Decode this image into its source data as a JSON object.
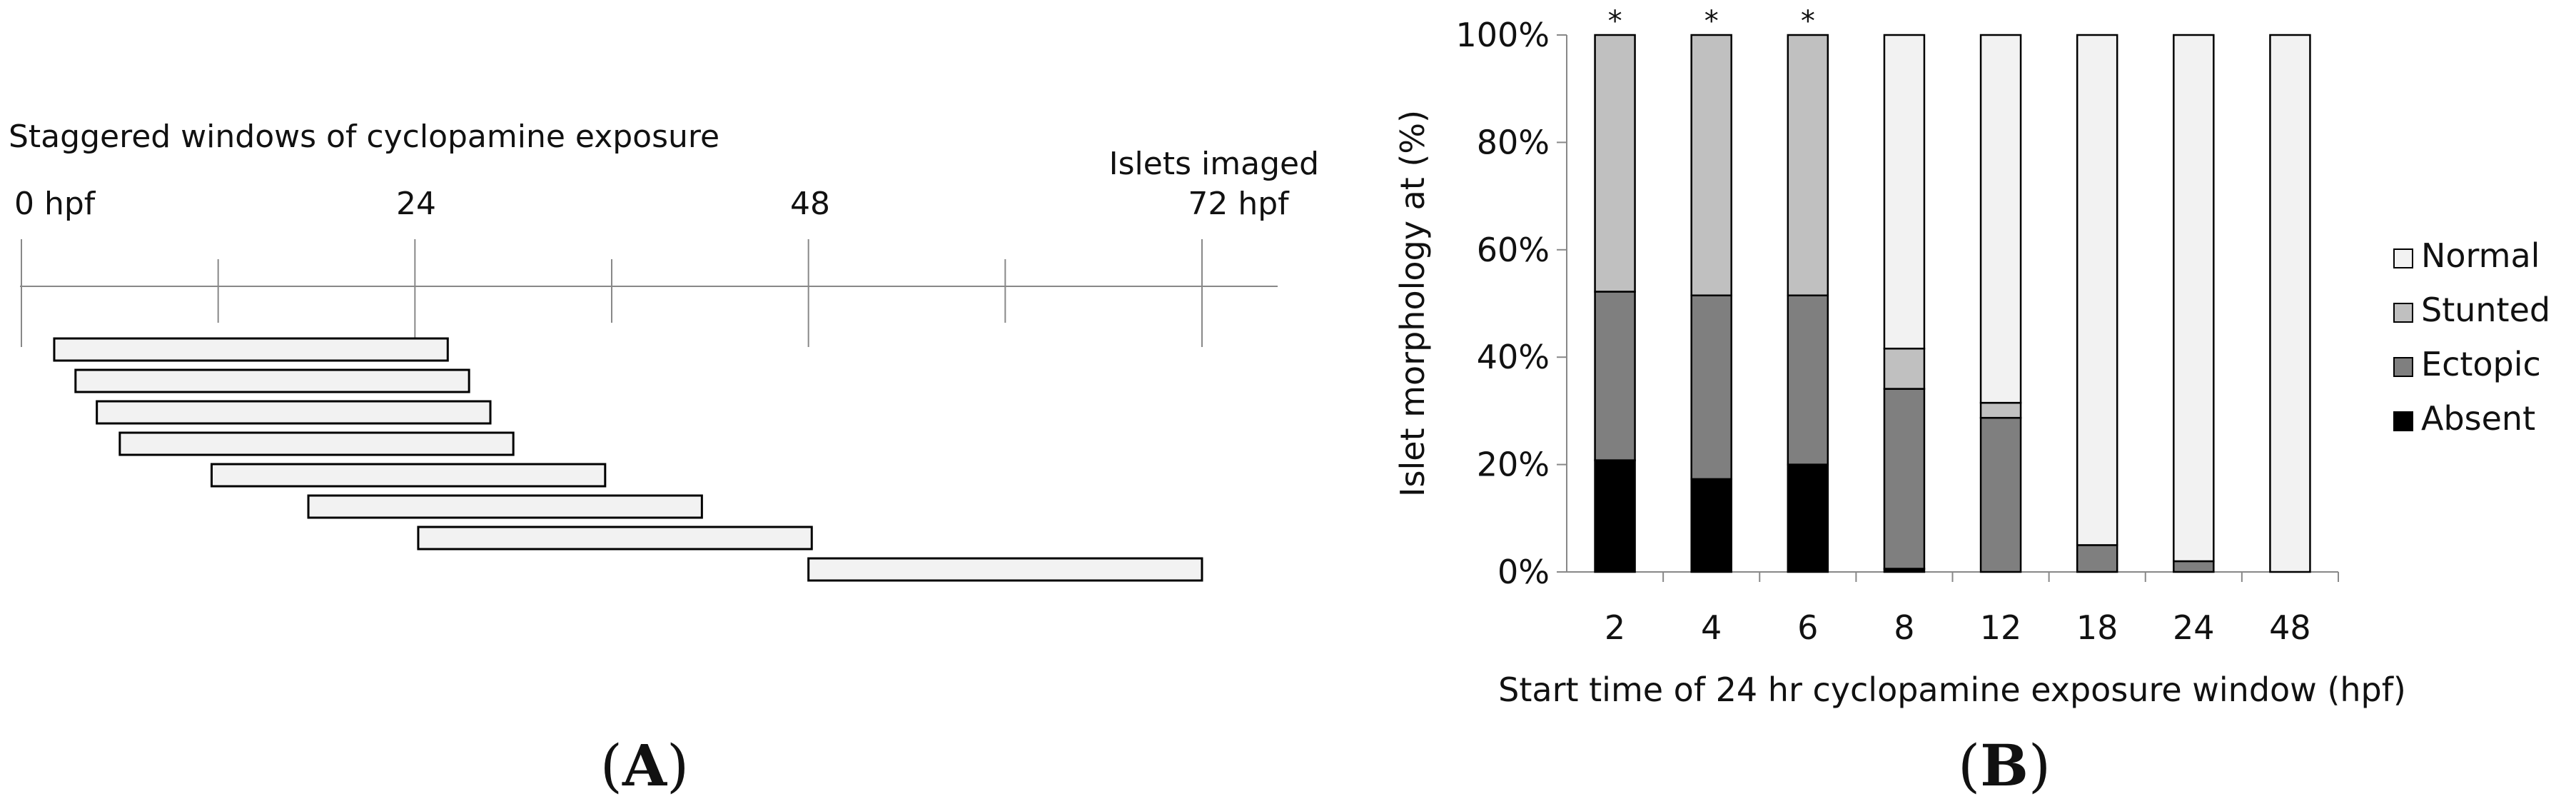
{
  "panel_a": {
    "title": "Staggered windows of cyclopamine exposure",
    "timeline_labels": [
      "0 hpf",
      "24",
      "48",
      "72 hpf"
    ],
    "end_note": "Islets imaged",
    "timeline_max_hpf": 72,
    "minor_ticks_hpf": [
      0,
      12,
      24,
      36,
      48,
      60,
      72
    ],
    "exposure_windows_hpf": [
      {
        "start": 2,
        "end": 26
      },
      {
        "start": 3.3,
        "end": 27.3
      },
      {
        "start": 4.6,
        "end": 28.6
      },
      {
        "start": 6,
        "end": 30
      },
      {
        "start": 11.6,
        "end": 35.6
      },
      {
        "start": 17.5,
        "end": 41.5
      },
      {
        "start": 24.2,
        "end": 48.2
      },
      {
        "start": 48,
        "end": 72
      }
    ],
    "bar_fill": "#f2f2f2",
    "panel_label": {
      "open": "(",
      "letter": "A",
      "close": ")"
    }
  },
  "chart_data": {
    "type": "bar",
    "stacked": true,
    "categories": [
      "2",
      "4",
      "6",
      "8",
      "12",
      "18",
      "24",
      "48"
    ],
    "series": [
      {
        "name": "Absent",
        "color": "#000000",
        "values": [
          20.8,
          17.3,
          20.0,
          0.6,
          0,
          0,
          0,
          0
        ]
      },
      {
        "name": "Ectopic",
        "color": "#7f7f7f",
        "values": [
          31.4,
          34.2,
          31.5,
          33.5,
          28.7,
          5.0,
          2.0,
          0
        ]
      },
      {
        "name": "Stunted",
        "color": "#c0c0c0",
        "values": [
          47.8,
          48.5,
          48.5,
          7.5,
          2.8,
          0,
          0,
          0
        ]
      },
      {
        "name": "Normal",
        "color": "#f2f2f2",
        "values": [
          0,
          0,
          0,
          58.4,
          68.5,
          95.0,
          98.0,
          100
        ]
      }
    ],
    "annotations": [
      "*",
      "*",
      "*",
      "",
      "",
      "",
      "",
      ""
    ],
    "xlabel": "Start time of 24 hr cyclopamine exposure window (hpf)",
    "ylabel": "Islet morphology at (%)",
    "ylim": [
      0,
      100
    ],
    "yticks": [
      "0%",
      "20%",
      "40%",
      "60%",
      "80%",
      "100%"
    ],
    "ytick_values": [
      0,
      20,
      40,
      60,
      80,
      100
    ],
    "legend_order": [
      "Normal",
      "Stunted",
      "Ectopic",
      "Absent"
    ],
    "legend_position": "right",
    "grid": false,
    "panel_label": {
      "open": "(",
      "letter": "B",
      "close": ")"
    }
  }
}
